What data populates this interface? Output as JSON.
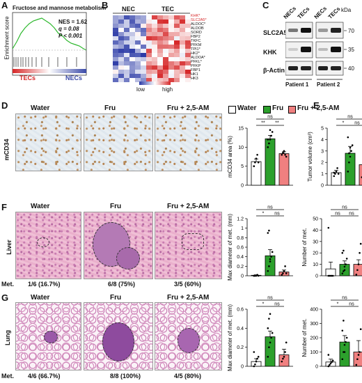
{
  "panel_labels": {
    "a": "A",
    "b": "B",
    "c": "C",
    "d": "D",
    "e": "E",
    "f": "F",
    "g": "G"
  },
  "colors": {
    "water": "#ffffff",
    "fru": "#2ca02c",
    "fru_25am": "#f08080",
    "gsea_line": "#2eb82e",
    "tec_red": "#d62728",
    "nec_blue": "#3b4aa8"
  },
  "panel_a": {
    "title": "Fructose and mannose metabolism",
    "ylabel": "Enrichment score",
    "nes": "NES = 1.62",
    "q": "q = 0.08",
    "p": "P < 0.001",
    "left_label": "TECs",
    "right_label": "NECs"
  },
  "panel_b": {
    "groups": [
      "NEC",
      "TEC"
    ],
    "genes": [
      "KHK*",
      "SLC2A5*",
      "ALDOC*",
      "ALDOB",
      "SORD",
      "FBP2",
      "TKFC",
      "PFKM",
      "TPI1*",
      "HK2*",
      "ALDOA*",
      "PFKL*",
      "PFKP",
      "FBP1",
      "HK1",
      "HK3"
    ],
    "legend_low": "low",
    "legend_high": "high"
  },
  "panel_c": {
    "kda": "kDa",
    "columns": [
      "NECs",
      "TECs",
      "NECs",
      "TECs"
    ],
    "patients": [
      "Patient 1",
      "Patient 2"
    ],
    "rows": [
      {
        "label": "SLC2A5",
        "mw": "70"
      },
      {
        "label": "KHK",
        "mw": "35"
      },
      {
        "label": "β-Actin",
        "mw": "40"
      }
    ]
  },
  "groups": [
    "Water",
    "Fru",
    "Fru + 2,5-AM"
  ],
  "row_labels": {
    "d": "mCD34",
    "f": "Liver",
    "g": "Lung"
  },
  "met_label": "Met.",
  "liver_met": [
    "1/6 (16.7%)",
    "6/8 (75%)",
    "3/5 (60%)"
  ],
  "lung_met": [
    "4/6 (66.7%)",
    "8/8 (100%)",
    "4/5 (80%)"
  ],
  "sig": {
    "ns": "ns",
    "one": "*",
    "two": "**"
  },
  "chart_data": [
    {
      "id": "mcd34",
      "type": "bar",
      "categories": [
        "Water",
        "Fru",
        "Fru + 2,5-AM"
      ],
      "values": [
        6.2,
        12.2,
        8.3
      ],
      "errors": [
        0.7,
        0.9,
        0.5
      ],
      "ylabel": "mCD34 area (%)",
      "ylim": [
        0,
        15
      ],
      "yticks": [
        0,
        5,
        10,
        15
      ],
      "points": [
        [
          5,
          6,
          7,
          8,
          6,
          5
        ],
        [
          10,
          11,
          12,
          13,
          14,
          12,
          11,
          14.5
        ],
        [
          8,
          8.5,
          9,
          8,
          7.5
        ]
      ]
    },
    {
      "id": "tumor_volume",
      "type": "bar",
      "categories": [
        "Water",
        "Fru",
        "Fru + 2,5-AM"
      ],
      "values": [
        1.1,
        2.8,
        1.8
      ],
      "errors": [
        0.2,
        0.6,
        0.6
      ],
      "ylabel": "Tumor volume (cm³)",
      "ylim": [
        0,
        5
      ],
      "yticks": [
        0,
        1,
        2,
        3,
        4,
        5
      ],
      "points": [
        [
          0.8,
          1.0,
          1.2,
          1.5,
          1.0,
          1.1
        ],
        [
          1.2,
          2.0,
          2.5,
          3.0,
          3.5,
          4.2,
          2.8,
          3.3
        ],
        [
          0.7,
          1.0,
          1.5,
          2.6,
          3.2
        ]
      ]
    },
    {
      "id": "liver_diameter",
      "type": "bar",
      "categories": [
        "Water",
        "Fru",
        "Fru + 2,5-AM"
      ],
      "values": [
        0.01,
        0.42,
        0.08
      ],
      "errors": [
        0.01,
        0.13,
        0.04
      ],
      "ylabel": "Max diameter of met. (mm)",
      "ylim": [
        0,
        1.2
      ],
      "yticks": [
        0,
        0.2,
        0.4,
        0.6,
        0.8,
        1.0,
        1.2
      ],
      "points": [
        [
          0,
          0,
          0,
          0.02,
          0,
          0
        ],
        [
          0.1,
          0.2,
          0.3,
          0.4,
          0.5,
          0.9,
          0.95,
          0.35
        ],
        [
          0.02,
          0.05,
          0.1,
          0.2,
          0.05
        ]
      ]
    },
    {
      "id": "liver_number",
      "type": "bar",
      "categories": [
        "Water",
        "Fru",
        "Fru + 2,5-AM"
      ],
      "values": [
        6,
        10,
        10
      ],
      "errors": [
        6,
        3,
        4
      ],
      "ylabel": "Number of met.",
      "ylim": [
        0,
        50
      ],
      "yticks": [
        0,
        10,
        20,
        30,
        40,
        50
      ],
      "points": [
        [
          0,
          0,
          0,
          0,
          0,
          42
        ],
        [
          2,
          4,
          8,
          10,
          15,
          20,
          22,
          5
        ],
        [
          1,
          5,
          10,
          20,
          28
        ]
      ]
    },
    {
      "id": "lung_diameter",
      "type": "bar",
      "categories": [
        "Water",
        "Fru",
        "Fru + 2,5-AM"
      ],
      "values": [
        0.05,
        0.31,
        0.12
      ],
      "errors": [
        0.03,
        0.06,
        0.06
      ],
      "ylabel": "Max diameter of met. (mm)",
      "ylim": [
        0,
        0.6
      ],
      "yticks": [
        0,
        0.2,
        0.4,
        0.6
      ],
      "points": [
        [
          0,
          0.02,
          0.05,
          0.08,
          0.1,
          0.15
        ],
        [
          0.1,
          0.2,
          0.25,
          0.3,
          0.35,
          0.4,
          0.5,
          0.55
        ],
        [
          0.05,
          0.08,
          0.1,
          0.15,
          0.25
        ]
      ]
    },
    {
      "id": "lung_number",
      "type": "bar",
      "categories": [
        "Water",
        "Fru",
        "Fru + 2,5-AM"
      ],
      "values": [
        30,
        170,
        100
      ],
      "errors": [
        20,
        45,
        80
      ],
      "ylabel": "Number of met.",
      "ylim": [
        0,
        400
      ],
      "yticks": [
        0,
        100,
        200,
        300,
        400
      ],
      "points": [
        [
          0,
          10,
          20,
          30,
          40,
          80
        ],
        [
          50,
          100,
          150,
          170,
          200,
          250,
          320,
          100
        ],
        [
          10,
          50,
          80,
          100,
          260
        ]
      ]
    }
  ]
}
